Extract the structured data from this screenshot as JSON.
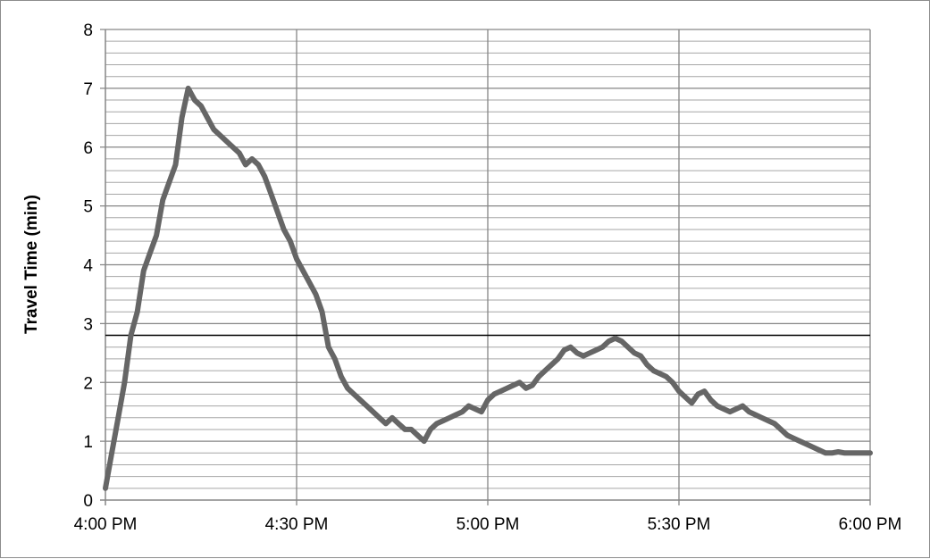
{
  "chart_data": {
    "type": "line",
    "title": "",
    "xlabel": "",
    "ylabel": "Travel Time (min)",
    "xlim": [
      "4:00 PM",
      "6:00 PM"
    ],
    "ylim": [
      0,
      8
    ],
    "grid": true,
    "x_tick_labels": [
      "4:00 PM",
      "4:30 PM",
      "5:00 PM",
      "5:30 PM",
      "6:00 PM"
    ],
    "y_tick_labels": [
      "0",
      "1",
      "2",
      "3",
      "4",
      "5",
      "6",
      "7",
      "8"
    ],
    "reference_line": {
      "value": 2.8
    },
    "series": [
      {
        "color": "#666666",
        "x": [
          "4:00 PM",
          "4:01 PM",
          "4:02 PM",
          "4:03 PM",
          "4:04 PM",
          "4:05 PM",
          "4:06 PM",
          "4:07 PM",
          "4:08 PM",
          "4:09 PM",
          "4:10 PM",
          "4:11 PM",
          "4:12 PM",
          "4:13 PM",
          "4:14 PM",
          "4:15 PM",
          "4:16 PM",
          "4:17 PM",
          "4:18 PM",
          "4:19 PM",
          "4:20 PM",
          "4:21 PM",
          "4:22 PM",
          "4:23 PM",
          "4:24 PM",
          "4:25 PM",
          "4:26 PM",
          "4:27 PM",
          "4:28 PM",
          "4:29 PM",
          "4:30 PM",
          "4:31 PM",
          "4:32 PM",
          "4:33 PM",
          "4:34 PM",
          "4:35 PM",
          "4:36 PM",
          "4:37 PM",
          "4:38 PM",
          "4:39 PM",
          "4:40 PM",
          "4:41 PM",
          "4:42 PM",
          "4:43 PM",
          "4:44 PM",
          "4:45 PM",
          "4:46 PM",
          "4:47 PM",
          "4:48 PM",
          "4:49 PM",
          "4:50 PM",
          "4:51 PM",
          "4:52 PM",
          "4:53 PM",
          "4:54 PM",
          "4:55 PM",
          "4:56 PM",
          "4:57 PM",
          "4:58 PM",
          "4:59 PM",
          "5:00 PM",
          "5:01 PM",
          "5:02 PM",
          "5:03 PM",
          "5:04 PM",
          "5:05 PM",
          "5:06 PM",
          "5:07 PM",
          "5:08 PM",
          "5:09 PM",
          "5:10 PM",
          "5:11 PM",
          "5:12 PM",
          "5:13 PM",
          "5:14 PM",
          "5:15 PM",
          "5:16 PM",
          "5:17 PM",
          "5:18 PM",
          "5:19 PM",
          "5:20 PM",
          "5:21 PM",
          "5:22 PM",
          "5:23 PM",
          "5:24 PM",
          "5:25 PM",
          "5:26 PM",
          "5:27 PM",
          "5:28 PM",
          "5:29 PM",
          "5:30 PM",
          "5:31 PM",
          "5:32 PM",
          "5:33 PM",
          "5:34 PM",
          "5:35 PM",
          "5:36 PM",
          "5:37 PM",
          "5:38 PM",
          "5:39 PM",
          "5:40 PM",
          "5:41 PM",
          "5:42 PM",
          "5:43 PM",
          "5:44 PM",
          "5:45 PM",
          "5:46 PM",
          "5:47 PM",
          "5:48 PM",
          "5:49 PM",
          "5:50 PM",
          "5:51 PM",
          "5:52 PM",
          "5:53 PM",
          "5:54 PM",
          "5:55 PM",
          "5:56 PM",
          "5:57 PM",
          "5:58 PM",
          "5:59 PM",
          "6:00 PM"
        ],
        "values": [
          0.2,
          0.8,
          1.4,
          2.0,
          2.8,
          3.2,
          3.9,
          4.2,
          4.5,
          5.1,
          5.4,
          5.7,
          6.5,
          7.0,
          6.8,
          6.7,
          6.5,
          6.3,
          6.2,
          6.1,
          6.0,
          5.9,
          5.7,
          5.8,
          5.7,
          5.5,
          5.2,
          4.9,
          4.6,
          4.4,
          4.1,
          3.9,
          3.7,
          3.5,
          3.2,
          2.6,
          2.4,
          2.1,
          1.9,
          1.8,
          1.7,
          1.6,
          1.5,
          1.4,
          1.3,
          1.4,
          1.3,
          1.2,
          1.2,
          1.1,
          1.0,
          1.2,
          1.3,
          1.35,
          1.4,
          1.45,
          1.5,
          1.6,
          1.55,
          1.5,
          1.7,
          1.8,
          1.85,
          1.9,
          1.95,
          2.0,
          1.9,
          1.95,
          2.1,
          2.2,
          2.3,
          2.4,
          2.55,
          2.6,
          2.5,
          2.45,
          2.5,
          2.55,
          2.6,
          2.7,
          2.75,
          2.7,
          2.6,
          2.5,
          2.45,
          2.3,
          2.2,
          2.15,
          2.1,
          2.0,
          1.85,
          1.75,
          1.65,
          1.8,
          1.85,
          1.7,
          1.6,
          1.55,
          1.5,
          1.55,
          1.6,
          1.5,
          1.45,
          1.4,
          1.35,
          1.3,
          1.2,
          1.1,
          1.05,
          1.0,
          0.95,
          0.9,
          0.85,
          0.8,
          0.8,
          0.82,
          0.8,
          0.8,
          0.8,
          0.8,
          0.8
        ]
      }
    ]
  }
}
